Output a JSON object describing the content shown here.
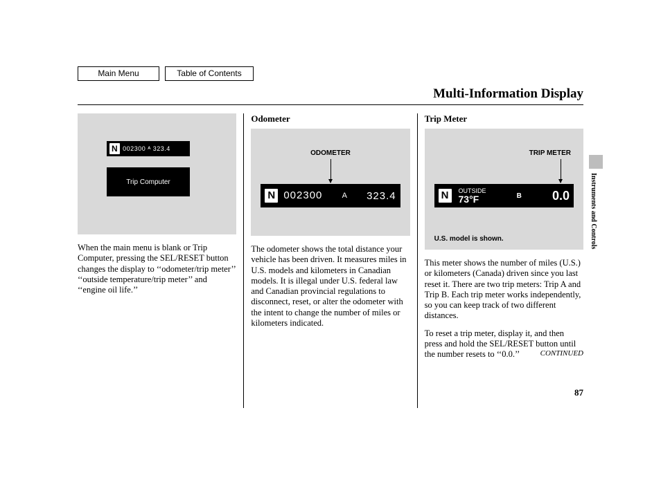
{
  "nav": {
    "main_menu": "Main Menu",
    "toc": "Table of Contents"
  },
  "title": "Multi-Information Display",
  "side_tab": "Instruments and Controls",
  "page_number": "87",
  "col1": {
    "lcd1_n": "N",
    "lcd1_text": "002300  ᴬ  323.4",
    "lcd2_text": "Trip Computer",
    "para": "When the main menu is blank or Trip Computer, pressing the SEL/RESET button changes the display to ‘‘odometer/trip meter’’ ‘‘outside temperature/trip meter’’ and ‘‘engine oil life.’’"
  },
  "col2": {
    "heading": "Odometer",
    "fig_label": "ODOMETER",
    "lcd_n": "N",
    "lcd_main": "002300",
    "lcd_a": "A",
    "lcd_right": "323.4",
    "para": "The odometer shows the total distance your vehicle has been driven. It measures miles in U.S. models and kilometers in Canadian models. It is illegal under U.S. federal law and Canadian provincial regulations to disconnect, reset, or alter the odometer with the intent to change the number of miles or kilometers indicated."
  },
  "col3": {
    "heading": "Trip Meter",
    "fig_label": "TRIP METER",
    "lcd_n": "N",
    "outside_label": "OUTSIDE",
    "outside_temp": "73°F",
    "b_label": "B",
    "trip_val": "0.0",
    "fig_note": "U.S. model is shown.",
    "para1": "This meter shows the number of miles (U.S.) or kilometers (Canada) driven since you last reset it. There are two trip meters: Trip A and Trip B. Each trip meter works independently, so you can keep track of two different distances.",
    "para2": "To reset a trip meter, display it, and then press and hold the SEL/RESET button until the number resets to ‘‘0.0.’’",
    "continued": "CONTINUED"
  }
}
